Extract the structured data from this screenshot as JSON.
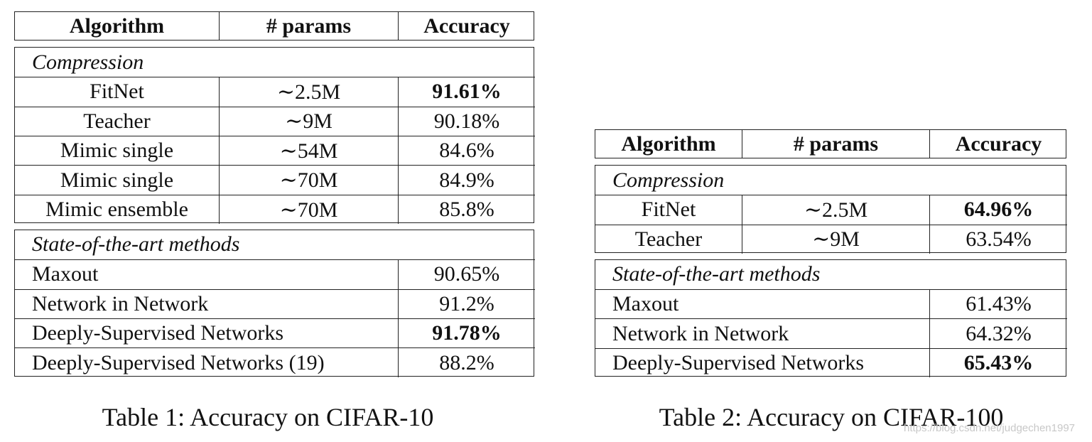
{
  "tables": [
    {
      "header": [
        "Algorithm",
        "# params",
        "Accuracy"
      ],
      "sections": [
        {
          "title": "Compression",
          "rows": [
            {
              "cells": [
                "FitNet",
                "∼2.5M",
                "91.61%"
              ],
              "bold": true
            },
            {
              "cells": [
                "Teacher",
                "∼9M",
                "90.18%"
              ]
            },
            {
              "cells": [
                "Mimic single",
                "∼54M",
                "84.6%"
              ]
            },
            {
              "cells": [
                "Mimic single",
                "∼70M",
                "84.9%"
              ]
            },
            {
              "cells": [
                "Mimic ensemble",
                "∼70M",
                "85.8%"
              ]
            }
          ]
        },
        {
          "title": "State-of-the-art methods",
          "rows": [
            {
              "cells": [
                "Maxout",
                "90.65%"
              ]
            },
            {
              "cells": [
                "Network in Network",
                "91.2%"
              ]
            },
            {
              "cells": [
                "Deeply-Supervised Networks",
                "91.78%"
              ],
              "bold": true
            },
            {
              "cells": [
                "Deeply-Supervised Networks (19)",
                "88.2%"
              ]
            }
          ]
        }
      ],
      "caption": "Table 1: Accuracy on CIFAR-10"
    },
    {
      "header": [
        "Algorithm",
        "# params",
        "Accuracy"
      ],
      "sections": [
        {
          "title": "Compression",
          "rows": [
            {
              "cells": [
                "FitNet",
                "∼2.5M",
                "64.96%"
              ],
              "bold": true
            },
            {
              "cells": [
                "Teacher",
                "∼9M",
                "63.54%"
              ]
            }
          ]
        },
        {
          "title": "State-of-the-art methods",
          "rows": [
            {
              "cells": [
                "Maxout",
                "61.43%"
              ]
            },
            {
              "cells": [
                "Network in Network",
                "64.32%"
              ]
            },
            {
              "cells": [
                "Deeply-Supervised Networks",
                "65.43%"
              ],
              "bold": true
            }
          ]
        }
      ],
      "caption": "Table 2: Accuracy on CIFAR-100"
    }
  ],
  "watermark": "https://blog.csdn.net/judgechen1997"
}
